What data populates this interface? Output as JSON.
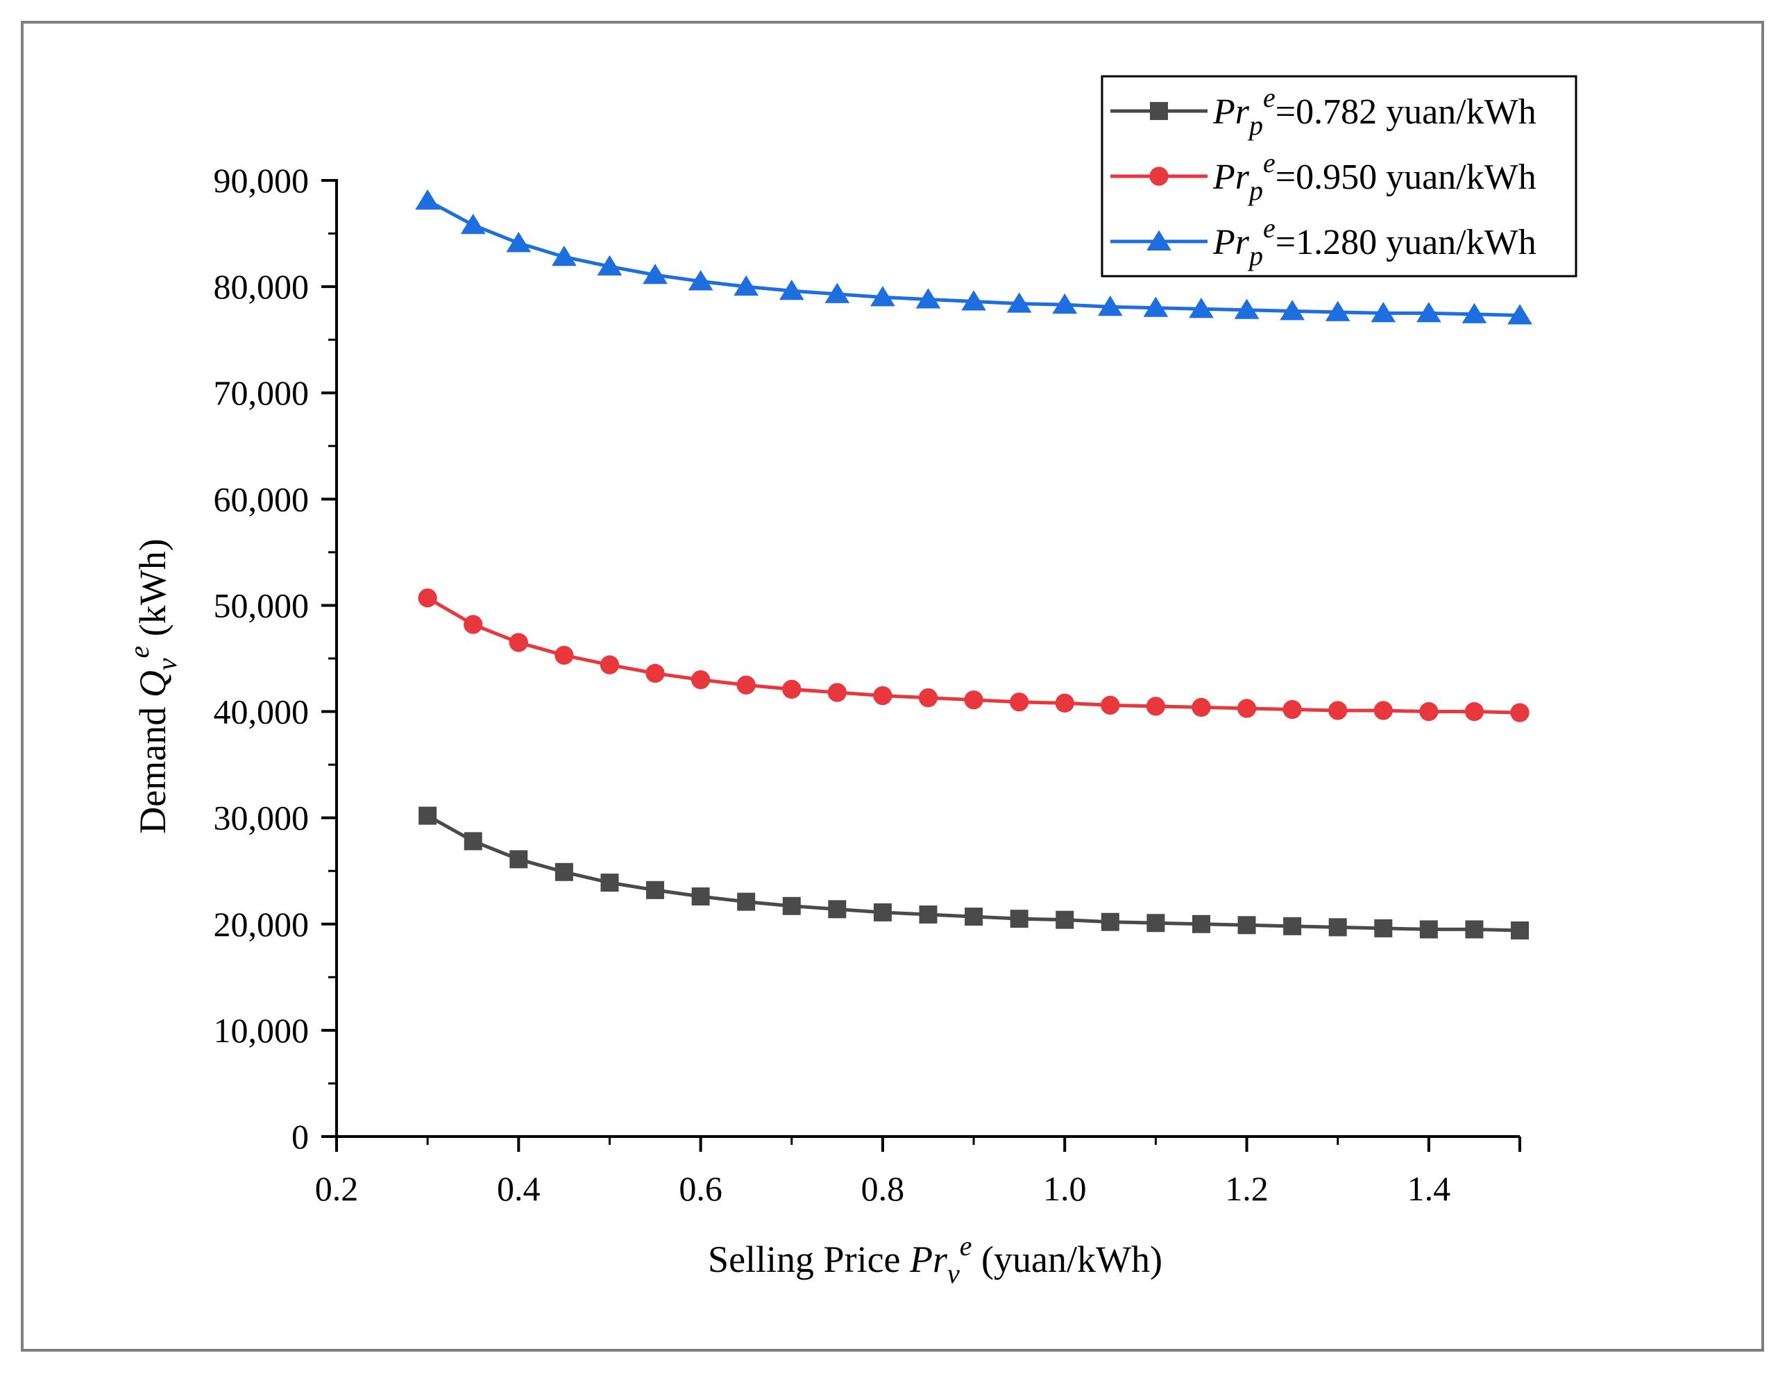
{
  "chart_data": {
    "type": "line",
    "title": "",
    "xlabel": {
      "prefix": "Selling Price ",
      "var": "Pr",
      "sub": "v",
      "sup": "e",
      "suffix": " (yuan/kWh)"
    },
    "ylabel": {
      "prefix": "Demand ",
      "var": "Q",
      "sub": "v",
      "sup": "e",
      "suffix": " (kWh)"
    },
    "xlim": [
      0.2,
      1.5
    ],
    "ylim": [
      0,
      90000
    ],
    "x_ticks": [
      0.2,
      0.4,
      0.6,
      0.8,
      1.0,
      1.2,
      1.4
    ],
    "x_tick_labels": [
      "0.2",
      "0.4",
      "0.6",
      "0.8",
      "1.0",
      "1.2",
      "1.4"
    ],
    "y_ticks": [
      0,
      10000,
      20000,
      30000,
      40000,
      50000,
      60000,
      70000,
      80000,
      90000
    ],
    "y_tick_labels": [
      "0",
      "10,000",
      "20,000",
      "30,000",
      "40,000",
      "50,000",
      "60,000",
      "70,000",
      "80,000",
      "90,000"
    ],
    "x": [
      0.3,
      0.35,
      0.4,
      0.45,
      0.5,
      0.55,
      0.6,
      0.65,
      0.7,
      0.75,
      0.8,
      0.85,
      0.9,
      0.95,
      1.0,
      1.05,
      1.1,
      1.15,
      1.2,
      1.25,
      1.3,
      1.35,
      1.4,
      1.45,
      1.5
    ],
    "series": [
      {
        "name": "Pr_p^e=0.782 yuan/kWh",
        "legend": {
          "var": "Pr",
          "sub": "p",
          "sup": "e",
          "rest": "=0.782 yuan/kWh"
        },
        "color": "#4a4a4a",
        "marker": "square",
        "values": [
          30200,
          27800,
          26100,
          24900,
          23900,
          23200,
          22600,
          22100,
          21700,
          21400,
          21100,
          20900,
          20700,
          20500,
          20400,
          20200,
          20100,
          20000,
          19900,
          19800,
          19700,
          19600,
          19500,
          19500,
          19400
        ]
      },
      {
        "name": "Pr_p^e=0.950 yuan/kWh",
        "legend": {
          "var": "Pr",
          "sub": "p",
          "sup": "e",
          "rest": "=0.950 yuan/kWh"
        },
        "color": "#e8383d",
        "marker": "circle",
        "values": [
          50700,
          48200,
          46500,
          45300,
          44400,
          43600,
          43000,
          42500,
          42100,
          41800,
          41500,
          41300,
          41100,
          40900,
          40800,
          40600,
          40500,
          40400,
          40300,
          40200,
          40100,
          40100,
          40000,
          40000,
          39900
        ]
      },
      {
        "name": "Pr_p^e=1.280 yuan/kWh",
        "legend": {
          "var": "Pr",
          "sub": "p",
          "sup": "e",
          "rest": "=1.280 yuan/kWh"
        },
        "color": "#1f6ee0",
        "marker": "triangle",
        "values": [
          88100,
          85800,
          84100,
          82800,
          81900,
          81100,
          80500,
          80000,
          79600,
          79300,
          79000,
          78800,
          78600,
          78400,
          78300,
          78100,
          78000,
          77900,
          77800,
          77700,
          77600,
          77500,
          77500,
          77400,
          77300
        ]
      }
    ],
    "legend_position": "top-right"
  }
}
